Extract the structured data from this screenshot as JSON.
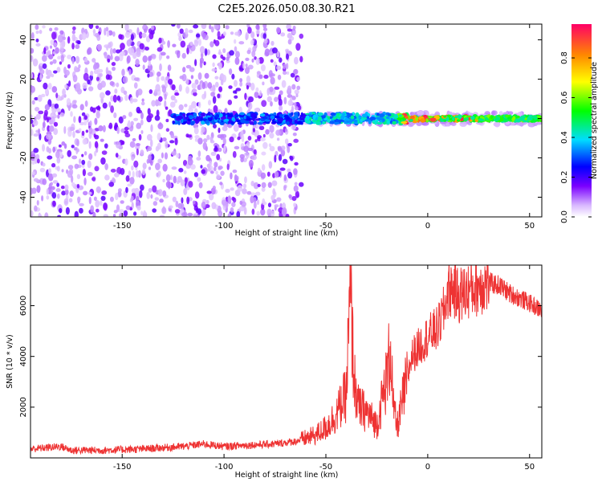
{
  "title": "C2E5.2026.050.08.30.R21",
  "colors": {
    "series": "#ee3333",
    "axis": "#000000",
    "background": "#ffffff"
  },
  "chart_data": [
    {
      "type": "heatmap",
      "xlabel": "Height of straight line (km)",
      "ylabel": "Frequency (Hz)",
      "xlim": [
        -195,
        56
      ],
      "ylim": [
        -50,
        48
      ],
      "xticks": [
        -150,
        -100,
        -50,
        0,
        50
      ],
      "yticks": [
        -40,
        -20,
        0,
        20,
        40
      ],
      "colorbar": {
        "label": "Normalized spectral amplitude",
        "range": [
          0.0,
          0.97
        ],
        "ticks": [
          0.0,
          0.2,
          0.4,
          0.6,
          0.8
        ],
        "colormap": "rainbow"
      },
      "description_features": {
        "noise_region_x": [
          -195,
          -62
        ],
        "centered_band_x": [
          -125,
          56
        ],
        "band_center_hz": 0,
        "peak_region_x": [
          -12,
          25
        ]
      }
    },
    {
      "type": "line",
      "xlabel": "Height of straight line (km)",
      "ylabel": "SNR (10 * v/v)",
      "xlim": [
        -195,
        56
      ],
      "ylim": [
        0,
        7600
      ],
      "xticks": [
        -150,
        -100,
        -50,
        0,
        50
      ],
      "yticks": [
        2000,
        4000,
        6000
      ],
      "series": [
        {
          "x": [
            -195,
            -180,
            -175,
            -160,
            -140,
            -120,
            -110,
            -100,
            -90,
            -75,
            -65,
            -55,
            -50,
            -45,
            -40,
            -38,
            -36,
            -34,
            -30,
            -27,
            -25,
            -20,
            -18,
            -17,
            -15,
            -12,
            -10,
            -8,
            -5,
            0,
            5,
            8,
            10,
            12,
            15,
            20,
            25,
            30,
            35,
            40,
            45,
            50,
            56
          ],
          "y": [
            350,
            450,
            300,
            300,
            350,
            450,
            550,
            450,
            500,
            550,
            650,
            900,
            1200,
            1700,
            2500,
            6400,
            3000,
            2000,
            1800,
            1500,
            1300,
            3200,
            4500,
            2000,
            1200,
            2400,
            3100,
            4000,
            4300,
            4800,
            5100,
            5800,
            6600,
            6700,
            6400,
            6600,
            6800,
            6900,
            6800,
            6500,
            6300,
            6100,
            5800
          ]
        }
      ]
    }
  ]
}
